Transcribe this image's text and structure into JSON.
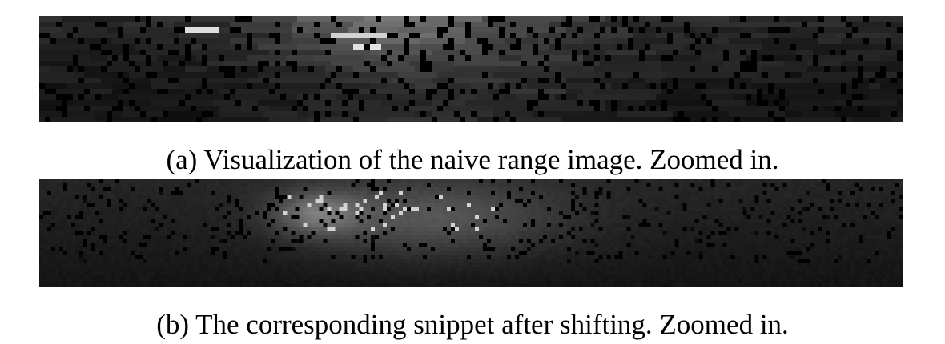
{
  "figure": {
    "subfigures": [
      {
        "caption": "(a) Visualization of the naive range image. Zoomed in.",
        "image_description": "grayscale range image, horizontal streaks"
      },
      {
        "caption": "(b) The corresponding snippet after shifting. Zoomed in.",
        "image_description": "grayscale range image after shifting"
      }
    ]
  }
}
